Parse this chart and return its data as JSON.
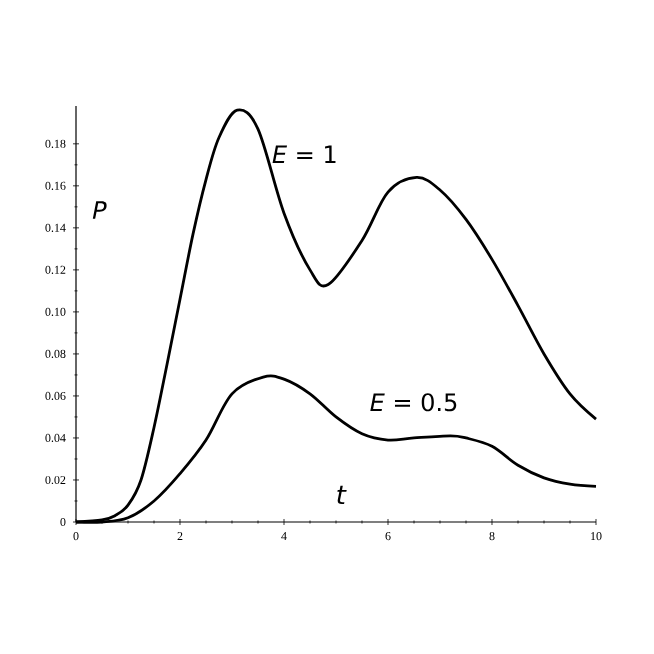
{
  "chart_data": {
    "type": "line",
    "xlabel": "*t*",
    "ylabel": "*P*",
    "x": [
      0,
      0.5,
      0.75,
      1,
      1.25,
      1.5,
      1.75,
      2,
      2.25,
      2.5,
      2.75,
      3.1,
      3.5,
      4,
      4.5,
      4.85,
      5.5,
      6,
      6.55,
      7,
      7.5,
      8,
      8.5,
      9,
      9.5,
      10
    ],
    "series": [
      {
        "name": "*E* = 1",
        "color": "#000000",
        "values": [
          0,
          0.001,
          0.003,
          0.008,
          0.02,
          0.045,
          0.075,
          0.106,
          0.137,
          0.163,
          0.183,
          0.196,
          0.187,
          0.147,
          0.12,
          0.113,
          0.134,
          0.157,
          0.164,
          0.158,
          0.144,
          0.125,
          0.103,
          0.08,
          0.061,
          0.049
        ]
      },
      {
        "name": "*E* = 0.5",
        "color": "#000000",
        "x": [
          0,
          0.5,
          1,
          1.5,
          2,
          2.5,
          3,
          3.6,
          4,
          4.5,
          5,
          5.5,
          6,
          6.5,
          7.2,
          7.5,
          8,
          8.5,
          9,
          9.5,
          10
        ],
        "values": [
          0,
          0,
          0.002,
          0.01,
          0.023,
          0.039,
          0.061,
          0.069,
          0.068,
          0.061,
          0.05,
          0.042,
          0.039,
          0.04,
          0.041,
          0.04,
          0.036,
          0.027,
          0.021,
          0.018,
          0.017
        ]
      }
    ],
    "xlim": [
      0,
      10
    ],
    "ylim": [
      0,
      0.198
    ],
    "xticks": [
      0,
      2,
      4,
      6,
      8,
      10
    ],
    "yticks": [
      0,
      0.02,
      0.04,
      0.06,
      0.08,
      {
        "value": 0.1,
        "label": "0.10"
      },
      0.12,
      0.14,
      0.16,
      0.18
    ],
    "marker": "none",
    "line_style": "solid"
  }
}
